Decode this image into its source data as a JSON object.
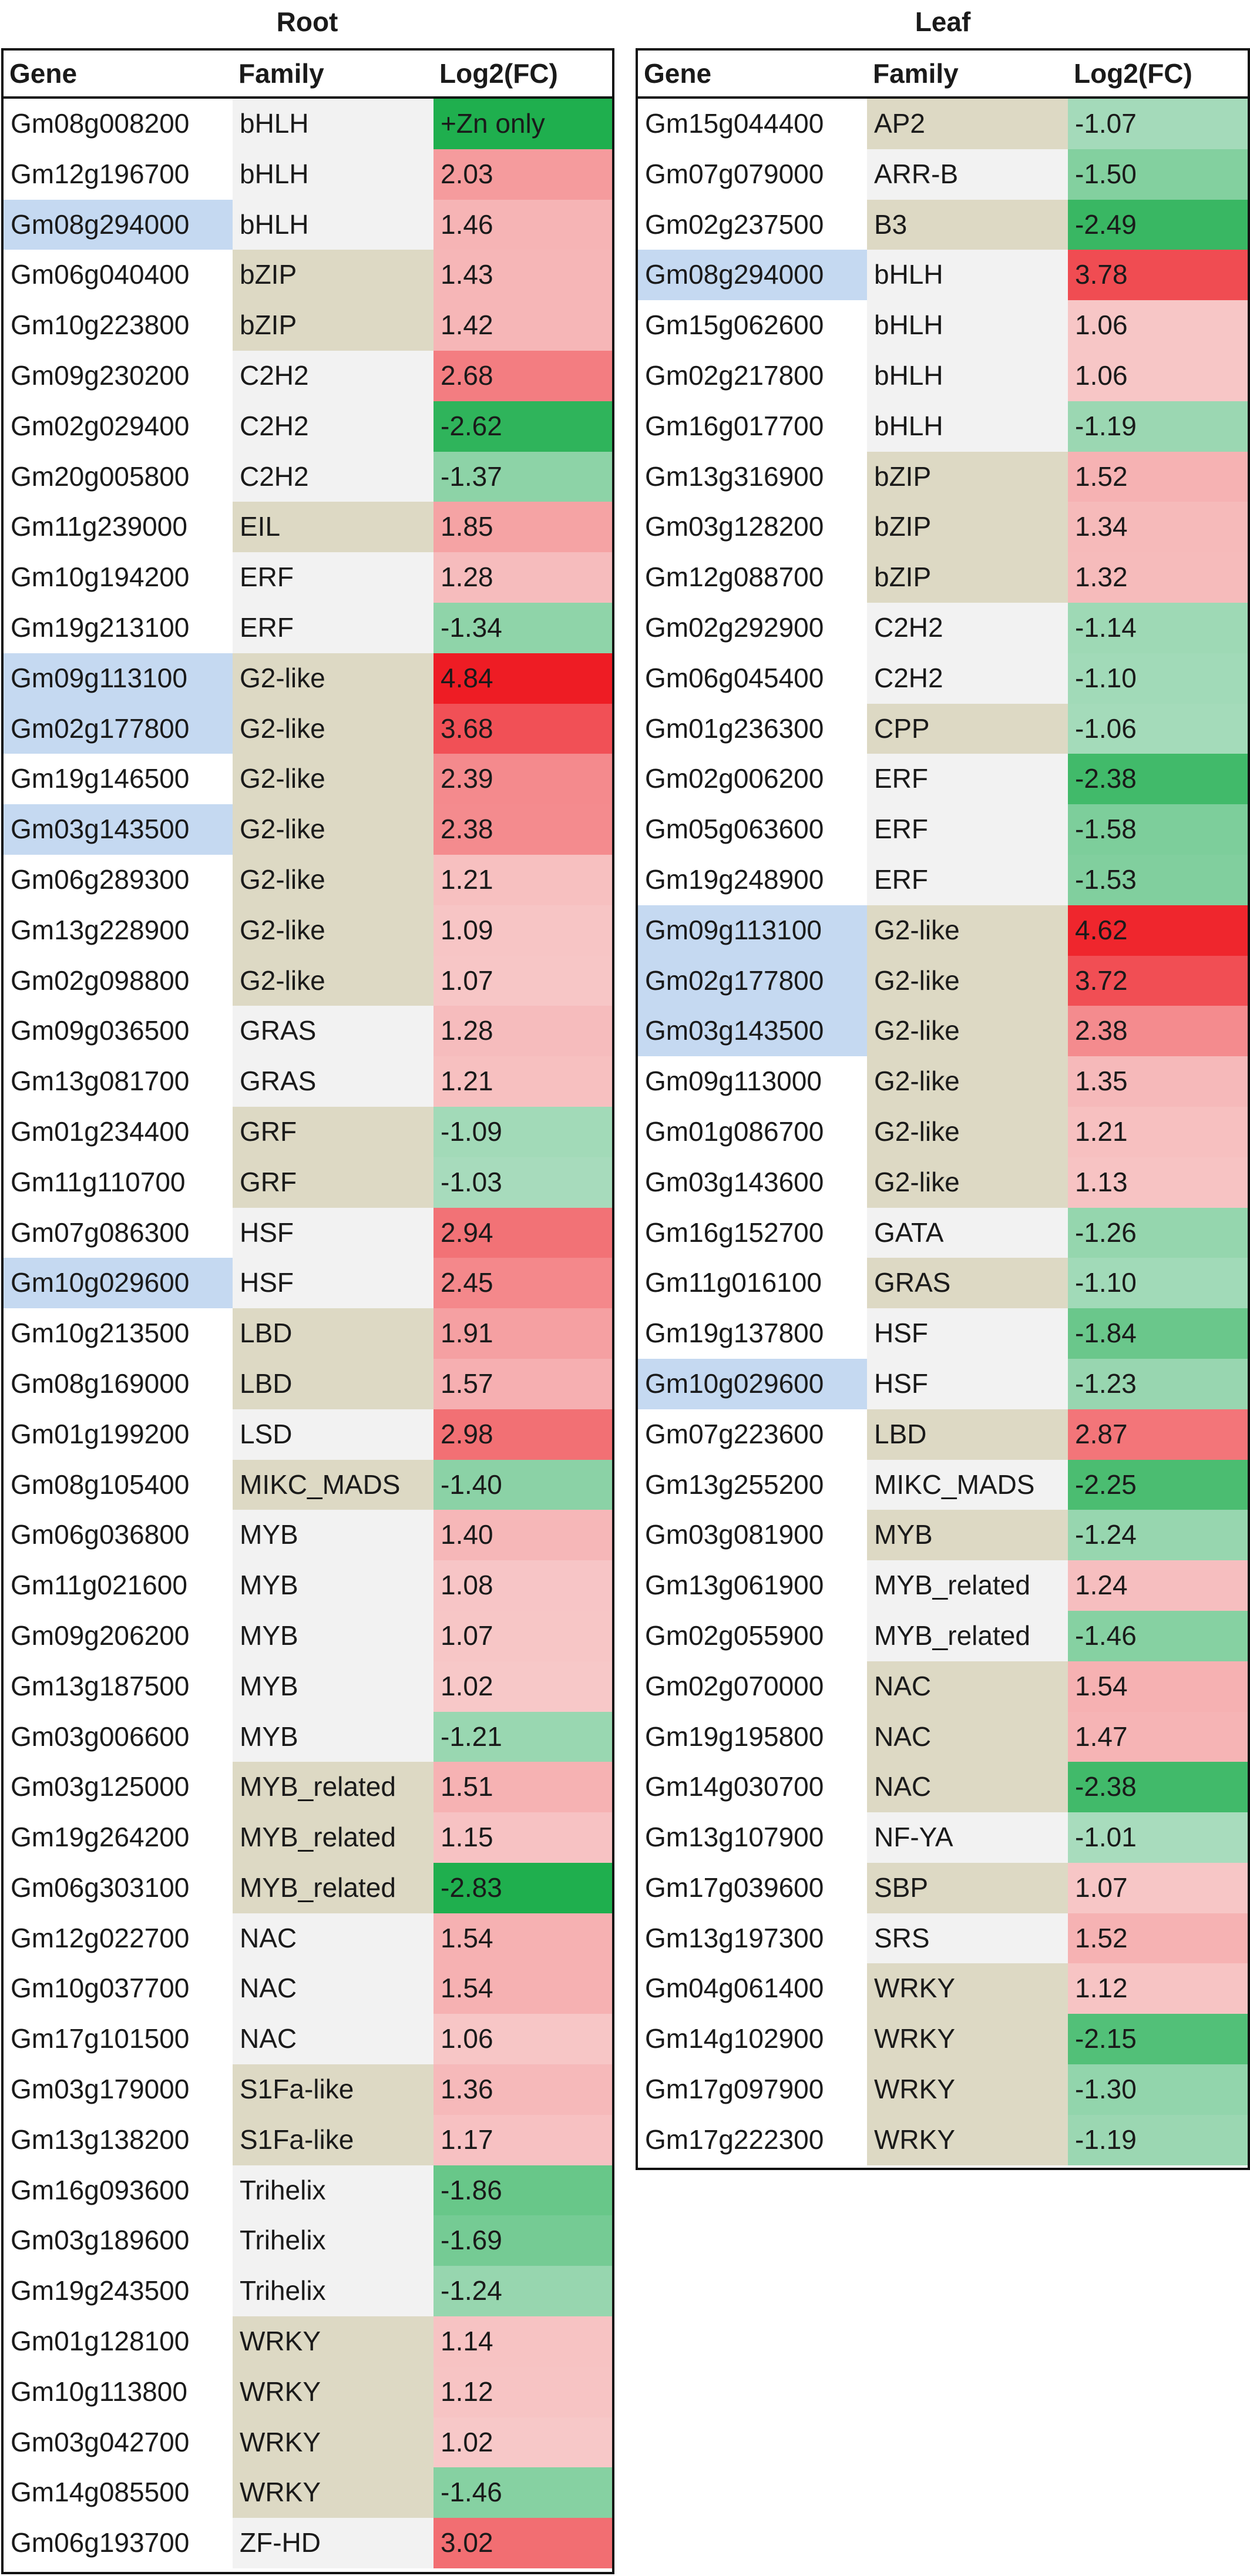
{
  "colors": {
    "gene_highlight": "#c5d9f1",
    "family_shade_a": "#ddd9c4",
    "family_shade_b": "#f2f2f2",
    "up_max": "#ee1c24",
    "up_min": "#f7c9c9",
    "down_max": "#1faf4e",
    "down_min": "#a9dcbe"
  },
  "headers": {
    "gene": "Gene",
    "family": "Family",
    "fc": "Log2(FC)"
  },
  "root": {
    "title": "Root",
    "rows": [
      {
        "gene": "Gm08g008200",
        "family": "bHLH",
        "fc": "+Zn only",
        "hl": false,
        "shade": "b"
      },
      {
        "gene": "Gm12g196700",
        "family": "bHLH",
        "fc": "2.03",
        "hl": false,
        "shade": "b"
      },
      {
        "gene": "Gm08g294000",
        "family": "bHLH",
        "fc": "1.46",
        "hl": true,
        "shade": "b"
      },
      {
        "gene": "Gm06g040400",
        "family": "bZIP",
        "fc": "1.43",
        "hl": false,
        "shade": "a"
      },
      {
        "gene": "Gm10g223800",
        "family": "bZIP",
        "fc": "1.42",
        "hl": false,
        "shade": "a"
      },
      {
        "gene": "Gm09g230200",
        "family": "C2H2",
        "fc": "2.68",
        "hl": false,
        "shade": "b"
      },
      {
        "gene": "Gm02g029400",
        "family": "C2H2",
        "fc": "-2.62",
        "hl": false,
        "shade": "b"
      },
      {
        "gene": "Gm20g005800",
        "family": "C2H2",
        "fc": "-1.37",
        "hl": false,
        "shade": "b"
      },
      {
        "gene": "Gm11g239000",
        "family": "EIL",
        "fc": "1.85",
        "hl": false,
        "shade": "a"
      },
      {
        "gene": "Gm10g194200",
        "family": "ERF",
        "fc": "1.28",
        "hl": false,
        "shade": "b"
      },
      {
        "gene": "Gm19g213100",
        "family": "ERF",
        "fc": "-1.34",
        "hl": false,
        "shade": "b"
      },
      {
        "gene": "Gm09g113100",
        "family": "G2-like",
        "fc": "4.84",
        "hl": true,
        "shade": "a"
      },
      {
        "gene": "Gm02g177800",
        "family": "G2-like",
        "fc": "3.68",
        "hl": true,
        "shade": "a"
      },
      {
        "gene": "Gm19g146500",
        "family": "G2-like",
        "fc": "2.39",
        "hl": false,
        "shade": "a"
      },
      {
        "gene": "Gm03g143500",
        "family": "G2-like",
        "fc": "2.38",
        "hl": true,
        "shade": "a"
      },
      {
        "gene": "Gm06g289300",
        "family": "G2-like",
        "fc": "1.21",
        "hl": false,
        "shade": "a"
      },
      {
        "gene": "Gm13g228900",
        "family": "G2-like",
        "fc": "1.09",
        "hl": false,
        "shade": "a"
      },
      {
        "gene": "Gm02g098800",
        "family": "G2-like",
        "fc": "1.07",
        "hl": false,
        "shade": "a"
      },
      {
        "gene": "Gm09g036500",
        "family": "GRAS",
        "fc": "1.28",
        "hl": false,
        "shade": "b"
      },
      {
        "gene": "Gm13g081700",
        "family": "GRAS",
        "fc": "1.21",
        "hl": false,
        "shade": "b"
      },
      {
        "gene": "Gm01g234400",
        "family": "GRF",
        "fc": "-1.09",
        "hl": false,
        "shade": "a"
      },
      {
        "gene": "Gm11g110700",
        "family": "GRF",
        "fc": "-1.03",
        "hl": false,
        "shade": "a"
      },
      {
        "gene": "Gm07g086300",
        "family": "HSF",
        "fc": "2.94",
        "hl": false,
        "shade": "b"
      },
      {
        "gene": "Gm10g029600",
        "family": "HSF",
        "fc": "2.45",
        "hl": true,
        "shade": "b"
      },
      {
        "gene": "Gm10g213500",
        "family": "LBD",
        "fc": "1.91",
        "hl": false,
        "shade": "a"
      },
      {
        "gene": "Gm08g169000",
        "family": "LBD",
        "fc": "1.57",
        "hl": false,
        "shade": "a"
      },
      {
        "gene": "Gm01g199200",
        "family": "LSD",
        "fc": "2.98",
        "hl": false,
        "shade": "b"
      },
      {
        "gene": "Gm08g105400",
        "family": "MIKC_MADS",
        "fc": "-1.40",
        "hl": false,
        "shade": "a"
      },
      {
        "gene": "Gm06g036800",
        "family": "MYB",
        "fc": "1.40",
        "hl": false,
        "shade": "b"
      },
      {
        "gene": "Gm11g021600",
        "family": "MYB",
        "fc": "1.08",
        "hl": false,
        "shade": "b"
      },
      {
        "gene": "Gm09g206200",
        "family": "MYB",
        "fc": "1.07",
        "hl": false,
        "shade": "b"
      },
      {
        "gene": "Gm13g187500",
        "family": "MYB",
        "fc": "1.02",
        "hl": false,
        "shade": "b"
      },
      {
        "gene": "Gm03g006600",
        "family": "MYB",
        "fc": "-1.21",
        "hl": false,
        "shade": "b"
      },
      {
        "gene": "Gm03g125000",
        "family": "MYB_related",
        "fc": "1.51",
        "hl": false,
        "shade": "a"
      },
      {
        "gene": "Gm19g264200",
        "family": "MYB_related",
        "fc": "1.15",
        "hl": false,
        "shade": "a"
      },
      {
        "gene": "Gm06g303100",
        "family": "MYB_related",
        "fc": "-2.83",
        "hl": false,
        "shade": "a"
      },
      {
        "gene": "Gm12g022700",
        "family": "NAC",
        "fc": "1.54",
        "hl": false,
        "shade": "b"
      },
      {
        "gene": "Gm10g037700",
        "family": "NAC",
        "fc": "1.54",
        "hl": false,
        "shade": "b"
      },
      {
        "gene": "Gm17g101500",
        "family": "NAC",
        "fc": "1.06",
        "hl": false,
        "shade": "b"
      },
      {
        "gene": "Gm03g179000",
        "family": "S1Fa-like",
        "fc": "1.36",
        "hl": false,
        "shade": "a"
      },
      {
        "gene": "Gm13g138200",
        "family": "S1Fa-like",
        "fc": "1.17",
        "hl": false,
        "shade": "a"
      },
      {
        "gene": "Gm16g093600",
        "family": "Trihelix",
        "fc": "-1.86",
        "hl": false,
        "shade": "b"
      },
      {
        "gene": "Gm03g189600",
        "family": "Trihelix",
        "fc": "-1.69",
        "hl": false,
        "shade": "b"
      },
      {
        "gene": "Gm19g243500",
        "family": "Trihelix",
        "fc": "-1.24",
        "hl": false,
        "shade": "b"
      },
      {
        "gene": "Gm01g128100",
        "family": "WRKY",
        "fc": "1.14",
        "hl": false,
        "shade": "a"
      },
      {
        "gene": "Gm10g113800",
        "family": "WRKY",
        "fc": "1.12",
        "hl": false,
        "shade": "a"
      },
      {
        "gene": "Gm03g042700",
        "family": "WRKY",
        "fc": "1.02",
        "hl": false,
        "shade": "a"
      },
      {
        "gene": "Gm14g085500",
        "family": "WRKY",
        "fc": "-1.46",
        "hl": false,
        "shade": "a"
      },
      {
        "gene": "Gm06g193700",
        "family": "ZF-HD",
        "fc": "3.02",
        "hl": false,
        "shade": "b"
      }
    ]
  },
  "leaf": {
    "title": "Leaf",
    "rows": [
      {
        "gene": "Gm15g044400",
        "family": "AP2",
        "fc": "-1.07",
        "hl": false,
        "shade": "a"
      },
      {
        "gene": "Gm07g079000",
        "family": "ARR-B",
        "fc": "-1.50",
        "hl": false,
        "shade": "b"
      },
      {
        "gene": "Gm02g237500",
        "family": "B3",
        "fc": "-2.49",
        "hl": false,
        "shade": "a"
      },
      {
        "gene": "Gm08g294000",
        "family": "bHLH",
        "fc": "3.78",
        "hl": true,
        "shade": "b"
      },
      {
        "gene": "Gm15g062600",
        "family": "bHLH",
        "fc": "1.06",
        "hl": false,
        "shade": "b"
      },
      {
        "gene": "Gm02g217800",
        "family": "bHLH",
        "fc": "1.06",
        "hl": false,
        "shade": "b"
      },
      {
        "gene": "Gm16g017700",
        "family": "bHLH",
        "fc": "-1.19",
        "hl": false,
        "shade": "b"
      },
      {
        "gene": "Gm13g316900",
        "family": "bZIP",
        "fc": "1.52",
        "hl": false,
        "shade": "a"
      },
      {
        "gene": "Gm03g128200",
        "family": "bZIP",
        "fc": "1.34",
        "hl": false,
        "shade": "a"
      },
      {
        "gene": "Gm12g088700",
        "family": "bZIP",
        "fc": "1.32",
        "hl": false,
        "shade": "a"
      },
      {
        "gene": "Gm02g292900",
        "family": "C2H2",
        "fc": "-1.14",
        "hl": false,
        "shade": "b"
      },
      {
        "gene": "Gm06g045400",
        "family": "C2H2",
        "fc": "-1.10",
        "hl": false,
        "shade": "b"
      },
      {
        "gene": "Gm01g236300",
        "family": "CPP",
        "fc": "-1.06",
        "hl": false,
        "shade": "a"
      },
      {
        "gene": "Gm02g006200",
        "family": "ERF",
        "fc": "-2.38",
        "hl": false,
        "shade": "b"
      },
      {
        "gene": "Gm05g063600",
        "family": "ERF",
        "fc": "-1.58",
        "hl": false,
        "shade": "b"
      },
      {
        "gene": "Gm19g248900",
        "family": "ERF",
        "fc": "-1.53",
        "hl": false,
        "shade": "b"
      },
      {
        "gene": "Gm09g113100",
        "family": "G2-like",
        "fc": "4.62",
        "hl": true,
        "shade": "a"
      },
      {
        "gene": "Gm02g177800",
        "family": "G2-like",
        "fc": "3.72",
        "hl": true,
        "shade": "a"
      },
      {
        "gene": "Gm03g143500",
        "family": "G2-like",
        "fc": "2.38",
        "hl": true,
        "shade": "a"
      },
      {
        "gene": "Gm09g113000",
        "family": "G2-like",
        "fc": "1.35",
        "hl": false,
        "shade": "a"
      },
      {
        "gene": "Gm01g086700",
        "family": "G2-like",
        "fc": "1.21",
        "hl": false,
        "shade": "a"
      },
      {
        "gene": "Gm03g143600",
        "family": "G2-like",
        "fc": "1.13",
        "hl": false,
        "shade": "a"
      },
      {
        "gene": "Gm16g152700",
        "family": "GATA",
        "fc": "-1.26",
        "hl": false,
        "shade": "b"
      },
      {
        "gene": "Gm11g016100",
        "family": "GRAS",
        "fc": "-1.10",
        "hl": false,
        "shade": "a"
      },
      {
        "gene": "Gm19g137800",
        "family": "HSF",
        "fc": "-1.84",
        "hl": false,
        "shade": "b"
      },
      {
        "gene": "Gm10g029600",
        "family": "HSF",
        "fc": "-1.23",
        "hl": true,
        "shade": "b"
      },
      {
        "gene": "Gm07g223600",
        "family": "LBD",
        "fc": "2.87",
        "hl": false,
        "shade": "a"
      },
      {
        "gene": "Gm13g255200",
        "family": "MIKC_MADS",
        "fc": "-2.25",
        "hl": false,
        "shade": "b"
      },
      {
        "gene": "Gm03g081900",
        "family": "MYB",
        "fc": "-1.24",
        "hl": false,
        "shade": "a"
      },
      {
        "gene": "Gm13g061900",
        "family": "MYB_related",
        "fc": "1.24",
        "hl": false,
        "shade": "b"
      },
      {
        "gene": "Gm02g055900",
        "family": "MYB_related",
        "fc": "-1.46",
        "hl": false,
        "shade": "b"
      },
      {
        "gene": "Gm02g070000",
        "family": "NAC",
        "fc": "1.54",
        "hl": false,
        "shade": "a"
      },
      {
        "gene": "Gm19g195800",
        "family": "NAC",
        "fc": "1.47",
        "hl": false,
        "shade": "a"
      },
      {
        "gene": "Gm14g030700",
        "family": "NAC",
        "fc": "-2.38",
        "hl": false,
        "shade": "a"
      },
      {
        "gene": "Gm13g107900",
        "family": "NF-YA",
        "fc": "-1.01",
        "hl": false,
        "shade": "b"
      },
      {
        "gene": "Gm17g039600",
        "family": "SBP",
        "fc": "1.07",
        "hl": false,
        "shade": "a"
      },
      {
        "gene": "Gm13g197300",
        "family": "SRS",
        "fc": "1.52",
        "hl": false,
        "shade": "b"
      },
      {
        "gene": "Gm04g061400",
        "family": "WRKY",
        "fc": "1.12",
        "hl": false,
        "shade": "a"
      },
      {
        "gene": "Gm14g102900",
        "family": "WRKY",
        "fc": "-2.15",
        "hl": false,
        "shade": "a"
      },
      {
        "gene": "Gm17g097900",
        "family": "WRKY",
        "fc": "-1.30",
        "hl": false,
        "shade": "a"
      },
      {
        "gene": "Gm17g222300",
        "family": "WRKY",
        "fc": "-1.19",
        "hl": false,
        "shade": "a"
      }
    ]
  }
}
